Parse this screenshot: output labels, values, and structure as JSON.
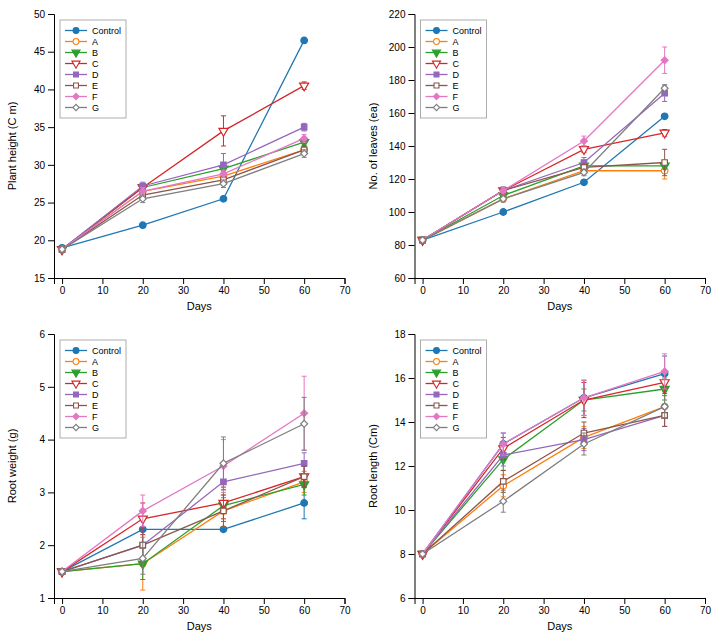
{
  "chart_data": [
    {
      "type": "line",
      "xlabel": "Days",
      "ylabel": "Plant height (C m)",
      "x": [
        0,
        20,
        40,
        60
      ],
      "xlim": [
        -2,
        70
      ],
      "xticks": [
        0,
        10,
        20,
        30,
        40,
        50,
        60,
        70
      ],
      "ylim": [
        15,
        50
      ],
      "yticks": [
        15,
        20,
        25,
        30,
        35,
        40,
        45,
        50
      ],
      "legend": "upper left",
      "series": [
        {
          "name": "Control",
          "marker": "circle",
          "values": [
            19.0,
            22.0,
            25.5,
            46.5
          ],
          "errors": [
            0.0,
            0.0,
            0.0,
            0.0
          ]
        },
        {
          "name": "A",
          "marker": "circle-open",
          "values": [
            18.8,
            26.5,
            28.5,
            32.0
          ],
          "errors": [
            0.0,
            0.8,
            0.5,
            0.5
          ]
        },
        {
          "name": "B",
          "marker": "triangle-down",
          "values": [
            18.8,
            27.0,
            29.5,
            33.0
          ],
          "errors": [
            0.0,
            0.5,
            0.5,
            0.5
          ]
        },
        {
          "name": "C",
          "marker": "triangle-down-open",
          "values": [
            18.8,
            27.0,
            34.5,
            40.5
          ],
          "errors": [
            0.0,
            0.5,
            2.0,
            0.5
          ]
        },
        {
          "name": "D",
          "marker": "square",
          "values": [
            18.8,
            27.2,
            30.0,
            35.0
          ],
          "errors": [
            0.0,
            0.5,
            1.5,
            0.5
          ]
        },
        {
          "name": "E",
          "marker": "square-open",
          "values": [
            18.8,
            26.0,
            28.0,
            32.0
          ],
          "errors": [
            0.0,
            0.5,
            0.5,
            0.5
          ]
        },
        {
          "name": "F",
          "marker": "diamond",
          "values": [
            18.8,
            26.5,
            28.8,
            33.5
          ],
          "errors": [
            0.0,
            0.5,
            0.5,
            0.5
          ]
        },
        {
          "name": "G",
          "marker": "diamond-open",
          "values": [
            18.8,
            25.5,
            27.5,
            31.5
          ],
          "errors": [
            0.0,
            0.5,
            0.5,
            0.5
          ]
        }
      ]
    },
    {
      "type": "line",
      "xlabel": "Days",
      "ylabel": "No. of leaves (ea)",
      "x": [
        0,
        20,
        40,
        60
      ],
      "xlim": [
        -2,
        70
      ],
      "xticks": [
        0,
        10,
        20,
        30,
        40,
        50,
        60,
        70
      ],
      "ylim": [
        60,
        220
      ],
      "yticks": [
        60,
        80,
        100,
        120,
        140,
        160,
        180,
        200,
        220
      ],
      "legend": "upper left",
      "series": [
        {
          "name": "Control",
          "marker": "circle",
          "values": [
            83,
            100,
            118,
            158
          ],
          "errors": [
            0,
            0,
            0,
            0
          ]
        },
        {
          "name": "A",
          "marker": "circle-open",
          "values": [
            83,
            108,
            125,
            125
          ],
          "errors": [
            0,
            0,
            0,
            5
          ]
        },
        {
          "name": "B",
          "marker": "triangle-down",
          "values": [
            83,
            110,
            128,
            128
          ],
          "errors": [
            0,
            2,
            2,
            2
          ]
        },
        {
          "name": "C",
          "marker": "triangle-down-open",
          "values": [
            83,
            113,
            138,
            148
          ],
          "errors": [
            0,
            2,
            2,
            2
          ]
        },
        {
          "name": "D",
          "marker": "square",
          "values": [
            83,
            113,
            130,
            172
          ],
          "errors": [
            0,
            2,
            3,
            5
          ]
        },
        {
          "name": "E",
          "marker": "square-open",
          "values": [
            83,
            113,
            127,
            130
          ],
          "errors": [
            0,
            2,
            2,
            8
          ]
        },
        {
          "name": "F",
          "marker": "diamond",
          "values": [
            83,
            113,
            143,
            192
          ],
          "errors": [
            0,
            2,
            3,
            8
          ]
        },
        {
          "name": "G",
          "marker": "diamond-open",
          "values": [
            83,
            108,
            124,
            175
          ],
          "errors": [
            0,
            2,
            2,
            2
          ]
        }
      ]
    },
    {
      "type": "line",
      "xlabel": "Days",
      "ylabel": "Root weight (g)",
      "x": [
        0,
        20,
        40,
        60
      ],
      "xlim": [
        -2,
        70
      ],
      "xticks": [
        0,
        10,
        20,
        30,
        40,
        50,
        60,
        70
      ],
      "ylim": [
        1,
        6
      ],
      "yticks": [
        1,
        2,
        3,
        4,
        5,
        6
      ],
      "legend": "upper left",
      "series": [
        {
          "name": "Control",
          "marker": "circle",
          "values": [
            1.5,
            2.3,
            2.3,
            2.8
          ],
          "errors": [
            0.0,
            0.0,
            0.0,
            0.3
          ]
        },
        {
          "name": "A",
          "marker": "circle-open",
          "values": [
            1.5,
            1.65,
            2.65,
            3.2
          ],
          "errors": [
            0.0,
            0.5,
            0.3,
            0.2
          ]
        },
        {
          "name": "B",
          "marker": "triangle-down",
          "values": [
            1.5,
            1.65,
            2.75,
            3.15
          ],
          "errors": [
            0.0,
            0.3,
            0.3,
            0.2
          ]
        },
        {
          "name": "C",
          "marker": "triangle-down-open",
          "values": [
            1.5,
            2.5,
            2.8,
            3.3
          ],
          "errors": [
            0.0,
            0.3,
            0.3,
            0.2
          ]
        },
        {
          "name": "D",
          "marker": "square",
          "values": [
            1.5,
            2.0,
            3.2,
            3.55
          ],
          "errors": [
            0.0,
            0.3,
            0.3,
            0.2
          ]
        },
        {
          "name": "E",
          "marker": "square-open",
          "values": [
            1.5,
            2.0,
            2.65,
            3.3
          ],
          "errors": [
            0.0,
            0.3,
            0.3,
            0.2
          ]
        },
        {
          "name": "F",
          "marker": "diamond",
          "values": [
            1.5,
            2.65,
            3.5,
            4.5
          ],
          "errors": [
            0.0,
            0.3,
            0.5,
            0.7
          ]
        },
        {
          "name": "G",
          "marker": "diamond-open",
          "values": [
            1.5,
            1.75,
            3.55,
            4.3
          ],
          "errors": [
            0.0,
            0.3,
            0.5,
            0.5
          ]
        }
      ]
    },
    {
      "type": "line",
      "xlabel": "Days",
      "ylabel": "Root length (Cm)",
      "x": [
        0,
        20,
        40,
        60
      ],
      "xlim": [
        -2,
        70
      ],
      "xticks": [
        0,
        10,
        20,
        30,
        40,
        50,
        60,
        70
      ],
      "ylim": [
        6,
        18
      ],
      "yticks": [
        6,
        8,
        10,
        12,
        14,
        16,
        18
      ],
      "legend": "upper left",
      "series": [
        {
          "name": "Control",
          "marker": "circle",
          "values": [
            8.0,
            13.0,
            15.1,
            16.2
          ],
          "errors": [
            0.0,
            0.5,
            0.8,
            0.8
          ]
        },
        {
          "name": "A",
          "marker": "circle-open",
          "values": [
            8.0,
            11.1,
            13.3,
            14.7
          ],
          "errors": [
            0.0,
            0.5,
            0.5,
            0.5
          ]
        },
        {
          "name": "B",
          "marker": "triangle-down",
          "values": [
            8.0,
            12.3,
            15.0,
            15.5
          ],
          "errors": [
            0.0,
            0.5,
            0.5,
            0.5
          ]
        },
        {
          "name": "C",
          "marker": "triangle-down-open",
          "values": [
            8.0,
            12.8,
            15.0,
            15.8
          ],
          "errors": [
            0.0,
            0.5,
            0.8,
            0.5
          ]
        },
        {
          "name": "D",
          "marker": "square",
          "values": [
            8.0,
            12.5,
            13.2,
            14.3
          ],
          "errors": [
            0.0,
            0.5,
            0.5,
            0.5
          ]
        },
        {
          "name": "E",
          "marker": "square-open",
          "values": [
            8.0,
            11.3,
            13.5,
            14.3
          ],
          "errors": [
            0.0,
            0.5,
            0.5,
            0.5
          ]
        },
        {
          "name": "F",
          "marker": "diamond",
          "values": [
            8.0,
            13.0,
            15.1,
            16.3
          ],
          "errors": [
            0.0,
            0.5,
            0.8,
            0.8
          ]
        },
        {
          "name": "G",
          "marker": "diamond-open",
          "values": [
            8.0,
            10.4,
            13.0,
            14.7
          ],
          "errors": [
            0.0,
            0.5,
            0.5,
            0.5
          ]
        }
      ]
    }
  ]
}
